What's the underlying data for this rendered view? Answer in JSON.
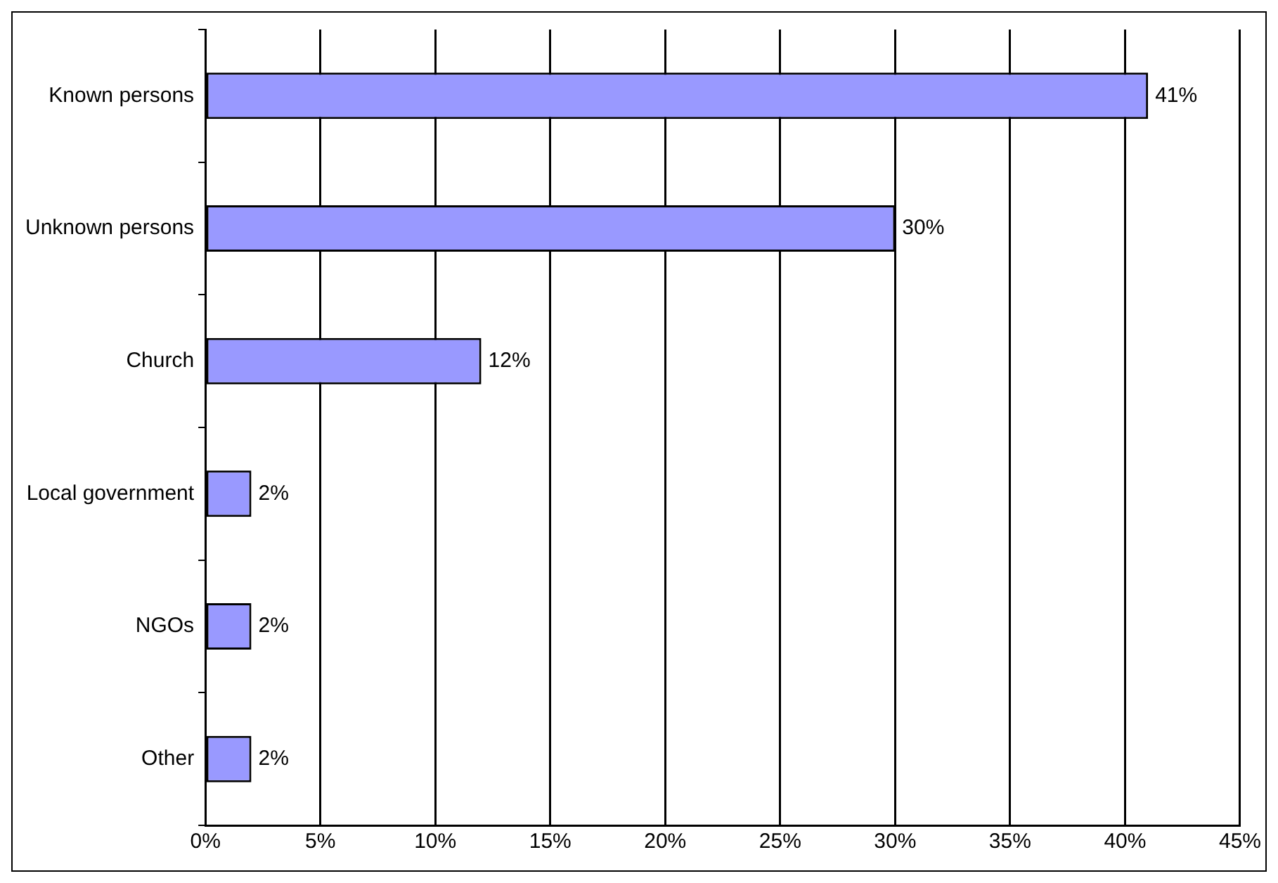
{
  "chart_data": {
    "type": "bar",
    "orientation": "horizontal",
    "categories": [
      "Known persons",
      "Unknown persons",
      "Church",
      "Local government",
      "NGOs",
      "Other"
    ],
    "values": [
      41,
      30,
      12,
      2,
      2,
      2
    ],
    "value_labels": [
      "41%",
      "30%",
      "12%",
      "2%",
      "2%",
      "2%"
    ],
    "color": "#9999ff",
    "xlim": [
      0,
      45
    ],
    "xticks": [
      {
        "value": 0,
        "label": "0%"
      },
      {
        "value": 5,
        "label": "5%"
      },
      {
        "value": 10,
        "label": "10%"
      },
      {
        "value": 15,
        "label": "15%"
      },
      {
        "value": 20,
        "label": "20%"
      },
      {
        "value": 25,
        "label": "25%"
      },
      {
        "value": 30,
        "label": "30%"
      },
      {
        "value": 35,
        "label": "35%"
      },
      {
        "value": 40,
        "label": "40%"
      },
      {
        "value": 45,
        "label": "45%"
      }
    ],
    "grid": "x",
    "legend": false
  }
}
